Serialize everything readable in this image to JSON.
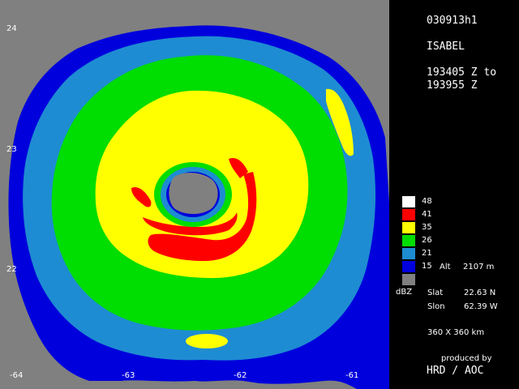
{
  "product_id": "030913h1",
  "storm_name": "ISABEL",
  "time_start": "193405 Z to",
  "time_end": "193955 Z",
  "legend": {
    "unit": "dBZ",
    "levels": [
      {
        "value": "48",
        "color": "#ffffff"
      },
      {
        "value": "41",
        "color": "#ff0000"
      },
      {
        "value": "35",
        "color": "#ffff00"
      },
      {
        "value": "26",
        "color": "#00dd00"
      },
      {
        "value": "21",
        "color": "#1e8cd2"
      },
      {
        "value": "15",
        "color": "#0000dc"
      }
    ],
    "nodata_color": "#808080"
  },
  "altitude": {
    "label": "Alt",
    "value": "2107 m"
  },
  "center": {
    "lat_label": "Slat",
    "lat_value": "22.63 N",
    "lon_label": "Slon",
    "lon_value": "62.39 W"
  },
  "domain_size": "360 X 360 km",
  "credit": {
    "line1": "produced by",
    "line2": "HRD / AOC"
  },
  "axes": {
    "lat_ticks": [
      "24",
      "23",
      "22"
    ],
    "lon_ticks": [
      "-64",
      "-63",
      "-62",
      "-61"
    ]
  }
}
